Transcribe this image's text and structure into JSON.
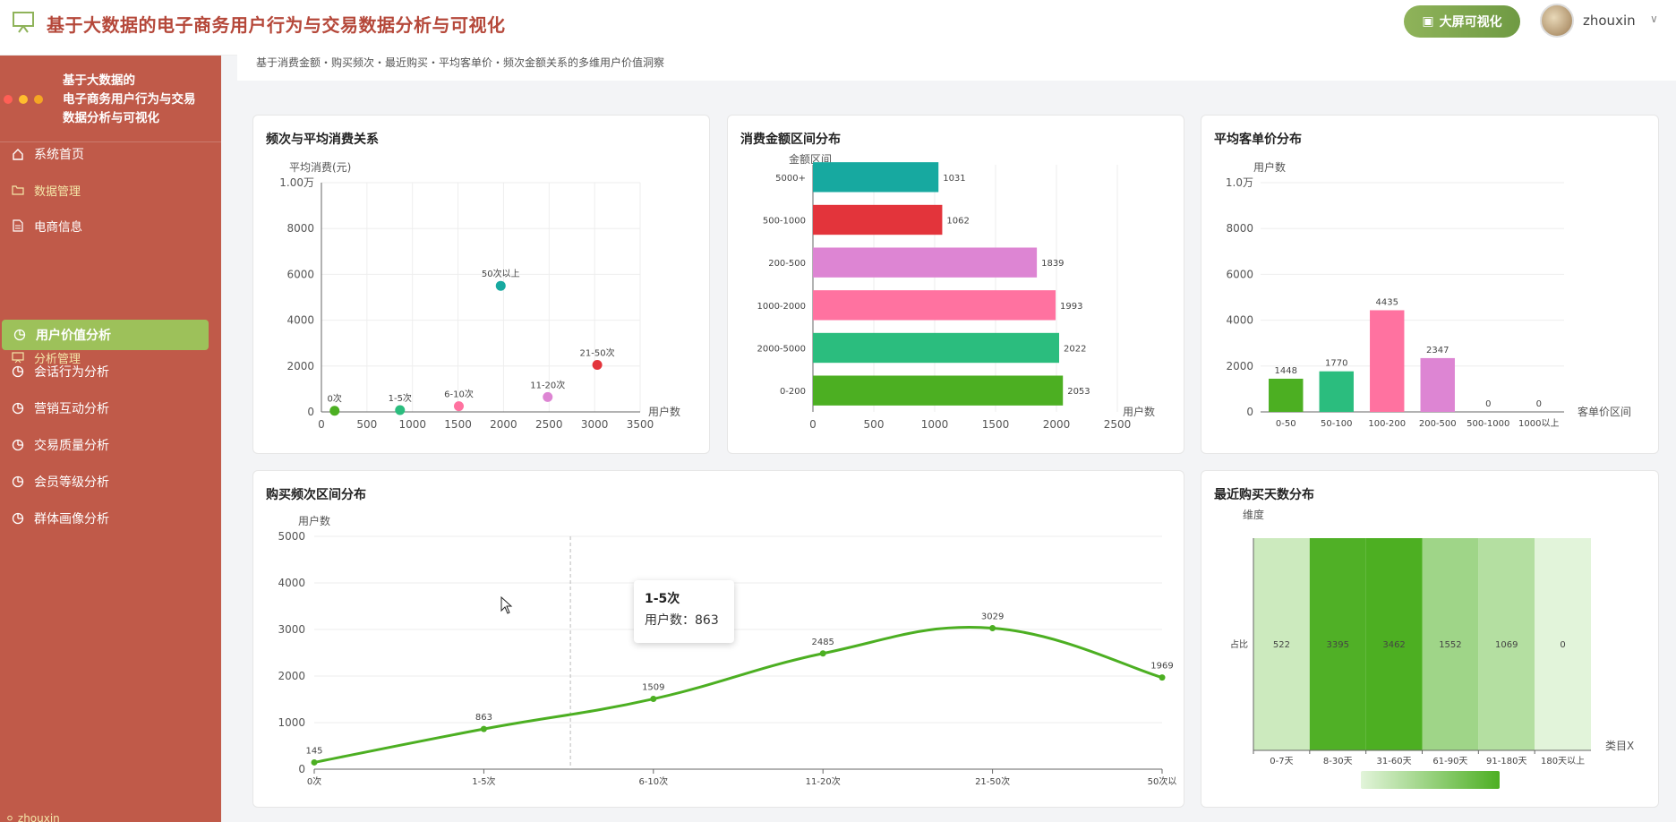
{
  "header": {
    "title": "基于大数据的电子商务用户行为与交易数据分析与可视化",
    "bigscreen_label": "大屏可视化",
    "username": "zhouxin"
  },
  "sidebar": {
    "title_lines": [
      "基于大数据的",
      "电子商务用户行为与交易",
      "数据分析与可视化"
    ],
    "items": [
      {
        "label": "系统首页",
        "icon": "home-icon",
        "type": "item"
      },
      {
        "label": "数据管理",
        "icon": "folder-icon",
        "type": "group"
      },
      {
        "label": "电商信息",
        "icon": "document-icon",
        "type": "item"
      },
      {
        "label": "分析管理",
        "icon": "presentation-icon",
        "type": "group"
      },
      {
        "label": "用户价值分析",
        "icon": "pie-chart-icon",
        "type": "item",
        "active": true
      },
      {
        "label": "会话行为分析",
        "icon": "pie-chart-icon",
        "type": "item"
      },
      {
        "label": "营销互动分析",
        "icon": "pie-chart-icon",
        "type": "item"
      },
      {
        "label": "交易质量分析",
        "icon": "pie-chart-icon",
        "type": "item"
      },
      {
        "label": "会员等级分析",
        "icon": "pie-chart-icon",
        "type": "item"
      },
      {
        "label": "群体画像分析",
        "icon": "pie-chart-icon",
        "type": "item"
      }
    ],
    "footer_user": "zhouxin"
  },
  "subtitle": "基于消费金额・购买频次・最近购买・平均客单价・频次金额关系的多维用户价值洞察",
  "colors": {
    "brand_red": "#c05a49",
    "accent_green": "#9dc15a",
    "teal": "#17a9a0",
    "red": "#e3343b",
    "orchid": "#dd85d3",
    "pink": "#ff72a0",
    "mint": "#2bbd7e",
    "green": "#4caf22"
  },
  "tooltip": {
    "title": "1-5次",
    "label": "用户数：",
    "value": "863"
  },
  "chart_data": [
    {
      "id": "freq_avg",
      "type": "scatter",
      "title": "频次与平均消费关系",
      "xlabel": "用户数",
      "ylabel": "平均消费(元)",
      "xlim": [
        0,
        3500
      ],
      "ylim": [
        0,
        10000
      ],
      "xticks": [
        "0",
        "500",
        "1000",
        "1500",
        "2000",
        "2500",
        "3000",
        "3500"
      ],
      "yticks": [
        "0",
        "2000",
        "4000",
        "6000",
        "8000",
        "1.00万"
      ],
      "points": [
        {
          "label": "0次",
          "x": 145,
          "y": 50,
          "color": "#4caf22"
        },
        {
          "label": "1-5次",
          "x": 863,
          "y": 80,
          "color": "#2bbd7e"
        },
        {
          "label": "6-10次",
          "x": 1509,
          "y": 250,
          "color": "#ff72a0"
        },
        {
          "label": "50次以上",
          "x": 1969,
          "y": 5500,
          "color": "#17a9a0"
        },
        {
          "label": "11-20次",
          "x": 2485,
          "y": 650,
          "color": "#dd85d3"
        },
        {
          "label": "21-50次",
          "x": 3029,
          "y": 2050,
          "color": "#e3343b"
        }
      ]
    },
    {
      "id": "amount_dist",
      "type": "bar",
      "orientation": "horizontal",
      "title": "消费金额区间分布",
      "xlabel": "用户数",
      "ylabel": "金额区间",
      "xlim": [
        0,
        2500
      ],
      "xticks": [
        "0",
        "500",
        "1000",
        "1500",
        "2000",
        "2500"
      ],
      "categories": [
        "0-200",
        "2000-5000",
        "1000-2000",
        "200-500",
        "500-1000",
        "5000+"
      ],
      "values": [
        2053,
        2022,
        1993,
        1839,
        1062,
        1031
      ],
      "colors": [
        "#4caf22",
        "#2bbd7e",
        "#ff72a0",
        "#dd85d3",
        "#e3343b",
        "#17a9a0"
      ]
    },
    {
      "id": "avg_price",
      "type": "bar",
      "title": "平均客单价分布",
      "xlabel": "客单价区间",
      "ylabel": "用户数",
      "ylim": [
        0,
        10000
      ],
      "yticks": [
        "0",
        "2000",
        "4000",
        "6000",
        "8000",
        "1.0万"
      ],
      "categories": [
        "0-50",
        "50-100",
        "100-200",
        "200-500",
        "500-1000",
        "1000以上"
      ],
      "values": [
        1448,
        1770,
        4435,
        2347,
        0,
        0
      ],
      "colors": [
        "#4caf22",
        "#2bbd7e",
        "#ff72a0",
        "#dd85d3",
        "#e3343b",
        "#17a9a0"
      ]
    },
    {
      "id": "freq_dist",
      "type": "line",
      "title": "购买频次区间分布",
      "ylabel": "用户数",
      "ylim": [
        0,
        5000
      ],
      "yticks": [
        "0",
        "1000",
        "2000",
        "3000",
        "4000",
        "5000"
      ],
      "categories": [
        "0次",
        "1-5次",
        "6-10次",
        "11-20次",
        "21-50次",
        "50次以上"
      ],
      "tick_labels": [
        "0次",
        "1-5次",
        "6-10次",
        "11-20次",
        "21-50次",
        "50次以"
      ],
      "values": [
        145,
        863,
        1509,
        2485,
        3029,
        1969
      ],
      "color": "#4caf22"
    },
    {
      "id": "recency",
      "type": "heatmap",
      "title": "最近购买天数分布",
      "ylabel": "维度",
      "xlabel": "类目X",
      "row_label": "占比",
      "categories": [
        "0-7天",
        "8-30天",
        "31-60天",
        "61-90天",
        "91-180天",
        "180天以上"
      ],
      "values": [
        522,
        3395,
        3462,
        1552,
        1069,
        0
      ],
      "range": [
        0,
        3462
      ]
    }
  ]
}
